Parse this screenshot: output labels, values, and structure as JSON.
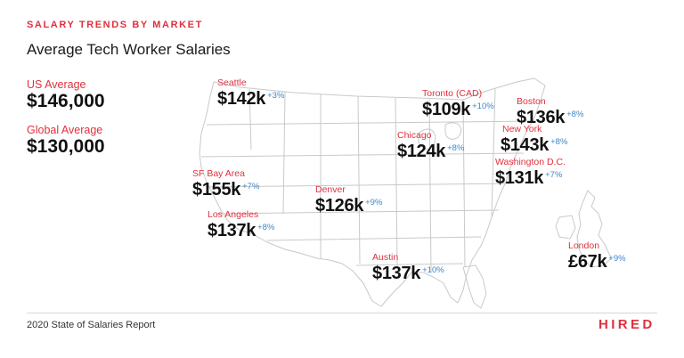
{
  "header": {
    "kicker": "SALARY TRENDS BY MARKET",
    "title": "Average Tech Worker Salaries"
  },
  "summary": {
    "us_label": "US Average",
    "us_value": "$146,000",
    "global_label": "Global Average",
    "global_value": "$130,000"
  },
  "cities": [
    {
      "name": "Seattle",
      "salary": "$142k",
      "change": "+3%"
    },
    {
      "name": "Toronto (CAD)",
      "salary": "$109k",
      "change": "+10%"
    },
    {
      "name": "Boston",
      "salary": "$136k",
      "change": "+8%"
    },
    {
      "name": "New York",
      "salary": "$143k",
      "change": "+8%"
    },
    {
      "name": "Chicago",
      "salary": "$124k",
      "change": "+8%"
    },
    {
      "name": "Washington D.C.",
      "salary": "$131k",
      "change": "+7%"
    },
    {
      "name": "SF Bay Area",
      "salary": "$155k",
      "change": "+7%"
    },
    {
      "name": "Denver",
      "salary": "$126k",
      "change": "+9%"
    },
    {
      "name": "Los Angeles",
      "salary": "$137k",
      "change": "+8%"
    },
    {
      "name": "Austin",
      "salary": "$137k",
      "change": "+10%"
    },
    {
      "name": "London",
      "salary": "£67k",
      "change": "+9%"
    }
  ],
  "footer": {
    "report": "2020 State of Salaries Report",
    "brand": "HIRED"
  },
  "colors": {
    "accent": "#e0313e",
    "change": "#3a86c8",
    "map_stroke": "#c9c9c9"
  }
}
